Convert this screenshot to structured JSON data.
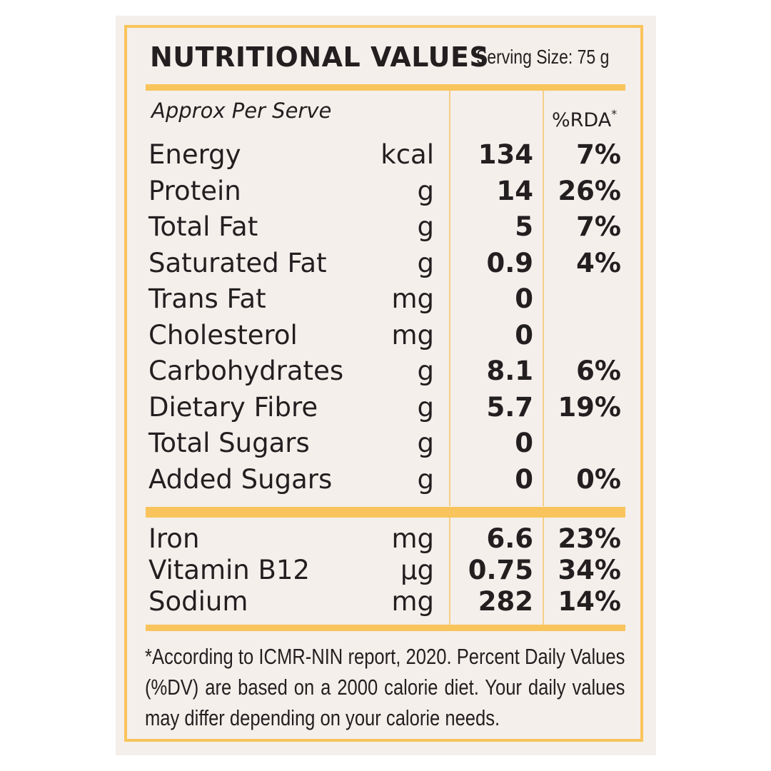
{
  "header": {
    "title": "NUTRITIONAL VALUES",
    "serving": "Serving Size: 75 g"
  },
  "subheader": {
    "approx": "Approx Per Serve",
    "rda": "%RDA",
    "rda_mark": "*"
  },
  "nutrients": [
    {
      "name": "Energy",
      "unit": "kcal",
      "amount": "134",
      "rda": "7%"
    },
    {
      "name": "Protein",
      "unit": "g",
      "amount": "14",
      "rda": "26%"
    },
    {
      "name": "Total Fat",
      "unit": "g",
      "amount": "5",
      "rda": "7%"
    },
    {
      "name": "Saturated Fat",
      "unit": "g",
      "amount": "0.9",
      "rda": "4%"
    },
    {
      "name": "Trans Fat",
      "unit": "mg",
      "amount": "0",
      "rda": ""
    },
    {
      "name": "Cholesterol",
      "unit": "mg",
      "amount": "0",
      "rda": ""
    },
    {
      "name": "Carbohydrates",
      "unit": "g",
      "amount": "8.1",
      "rda": "6%"
    },
    {
      "name": "Dietary Fibre",
      "unit": "g",
      "amount": "5.7",
      "rda": "19%"
    },
    {
      "name": "Total Sugars",
      "unit": "g",
      "amount": "0",
      "rda": ""
    },
    {
      "name": "Added Sugars",
      "unit": "g",
      "amount": "0",
      "rda": "0%"
    }
  ],
  "minerals": [
    {
      "name": "Iron",
      "unit": "mg",
      "amount": "6.6",
      "rda": "23%"
    },
    {
      "name": "Vitamin B12",
      "unit": "µg",
      "amount": "0.75",
      "rda": "34%"
    },
    {
      "name": "Sodium",
      "unit": "mg",
      "amount": "282",
      "rda": "14%"
    }
  ],
  "footnote": "*According to ICMR-NIN report, 2020. Percent Daily Values (%DV) are based on a 2000 calorie diet. Your daily values may differ depending on your calorie needs.",
  "colors": {
    "accent": "#f9c45c",
    "background": "#f4efeb",
    "text": "#231f20"
  }
}
